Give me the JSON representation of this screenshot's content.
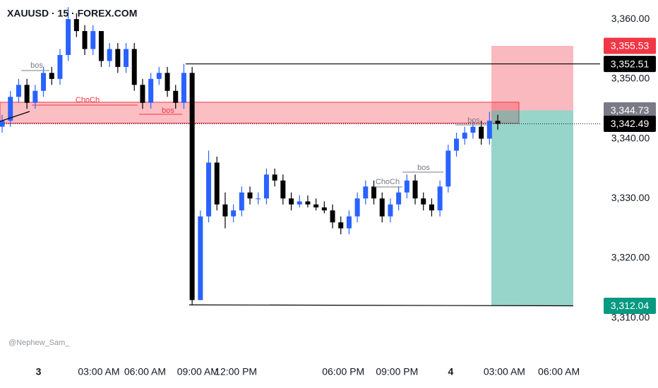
{
  "chart_data": {
    "type": "candlestick",
    "title": "XAUUSD · 15 · FOREX.COM",
    "watermark": "@Nephew_Sam_",
    "up_color": "#2962ff",
    "down_color": "#000000",
    "xlim": [
      -0.26,
      72.39
    ],
    "xticks": [
      {
        "value": 4.4,
        "label": "3"
      },
      {
        "value": 11.7,
        "label": "03:00 AM"
      },
      {
        "value": 17.3,
        "label": "06:00 AM"
      },
      {
        "value": 23.7,
        "label": "09:00 AM"
      },
      {
        "value": 28.3,
        "label": "12:00 PM"
      },
      {
        "value": 41.3,
        "label": "06:00 PM"
      },
      {
        "value": 47.8,
        "label": "09:00 PM"
      },
      {
        "value": 54.3,
        "label": "4"
      },
      {
        "value": 60.8,
        "label": "03:00 AM"
      },
      {
        "value": 67.4,
        "label": "06:00 AM"
      }
    ],
    "ylim": [
      3303.6,
      3363.2
    ],
    "yticks": [
      {
        "value": 3310,
        "label": "3,310.00"
      },
      {
        "value": 3320,
        "label": "3,320.00"
      },
      {
        "value": 3330,
        "label": "3,330.00"
      },
      {
        "value": 3340,
        "label": "3,340.00"
      },
      {
        "value": 3350,
        "label": "3,350.00"
      },
      {
        "value": 3360,
        "label": "3,360.00"
      }
    ],
    "open": [
      3342,
      3343,
      3347,
      3349,
      3346,
      3348,
      3351,
      3350,
      3354,
      3360,
      3358,
      3355,
      3358,
      3353,
      3355,
      3352,
      3355,
      3349,
      3346,
      3350,
      3351,
      3348,
      3346,
      3351,
      3313,
      3327,
      3336,
      3329,
      3327,
      3328,
      3331,
      3330,
      3330,
      3334,
      3333,
      3330,
      3329,
      3329.5,
      3329,
      3328.5,
      3328,
      3326,
      3325,
      3327,
      3330,
      3332,
      3330,
      3327,
      3329,
      3331,
      3333,
      3330,
      3329,
      3328,
      3332,
      3338,
      3340,
      3341,
      3342,
      3340,
      3343
    ],
    "high": [
      3344,
      3348,
      3350,
      3350,
      3349,
      3352,
      3352,
      3355,
      3362,
      3361,
      3359,
      3359,
      3358,
      3356,
      3356,
      3356,
      3356,
      3350,
      3351,
      3352,
      3352,
      3349,
      3352.5,
      3352,
      3328,
      3338,
      3337,
      3331,
      3329,
      3332,
      3332,
      3331,
      3335,
      3335,
      3334,
      3331,
      3330.5,
      3330.5,
      3330,
      3329.5,
      3329,
      3327,
      3328,
      3331,
      3333,
      3333,
      3331,
      3330,
      3332,
      3334,
      3334,
      3331,
      3330,
      3333,
      3339,
      3341,
      3342,
      3343,
      3343,
      3344.5,
      3344
    ],
    "low": [
      3341,
      3342,
      3346,
      3345,
      3345,
      3347,
      3349,
      3349,
      3353,
      3357,
      3354,
      3354,
      3352,
      3352,
      3351,
      3351,
      3348,
      3345,
      3345,
      3349,
      3347,
      3345,
      3345,
      3312.2,
      3313,
      3326,
      3328,
      3325,
      3326,
      3327,
      3329,
      3329,
      3329,
      3332,
      3329,
      3328,
      3328.5,
      3328.5,
      3328,
      3327.5,
      3325,
      3324,
      3324,
      3326,
      3329,
      3329,
      3326,
      3326,
      3328,
      3330,
      3329,
      3328,
      3327,
      3327,
      3331,
      3337,
      3339,
      3340,
      3339,
      3339,
      3341.5
    ],
    "close": [
      3343,
      3347,
      3349,
      3346,
      3348,
      3351,
      3350,
      3354,
      3360,
      3358,
      3355,
      3358,
      3353,
      3355,
      3352,
      3355,
      3349,
      3346,
      3350,
      3351,
      3348,
      3346,
      3351,
      3313,
      3327,
      3336,
      3329,
      3327,
      3328,
      3331,
      3330,
      3330,
      3334,
      3333,
      3330,
      3329,
      3329.5,
      3329,
      3328.5,
      3328,
      3326,
      3325,
      3327,
      3330,
      3332,
      3330,
      3327,
      3329,
      3331,
      3333,
      3330,
      3329,
      3328,
      3332,
      3338,
      3340,
      3341,
      3342,
      3340,
      3343,
      3342.49
    ],
    "supply_zone": [
      3342.6,
      3346.1
    ],
    "price_labels": [
      {
        "value": 3355.53,
        "label": "3,355.53",
        "color": "#f23645"
      },
      {
        "value": 3352.51,
        "label": "3,352.51",
        "color": "#000000"
      },
      {
        "value": 3344.73,
        "label": "3,344.73",
        "color": "#787b86"
      },
      {
        "value": 3342.49,
        "label": "3,342.49",
        "color": "#000000"
      },
      {
        "value": 3312.04,
        "label": "3,312.04",
        "color": "#089981"
      }
    ],
    "annotations": [
      "bos",
      "ChoCh",
      "bos",
      "ChoCh",
      "bos",
      "bos"
    ]
  }
}
